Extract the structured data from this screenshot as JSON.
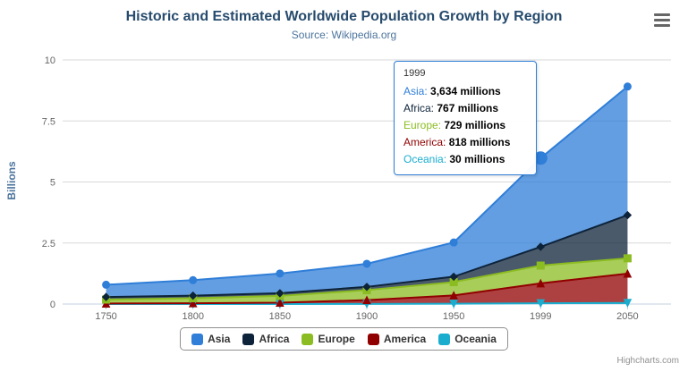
{
  "chart": {
    "title": "Historic and Estimated Worldwide Population Growth by Region",
    "subtitle": "Source: Wikipedia.org",
    "credits": "Highcharts.com"
  },
  "chart_data": {
    "type": "area",
    "stacking": "normal",
    "title": "Historic and Estimated Worldwide Population Growth by Region",
    "subtitle": "Source: Wikipedia.org",
    "categories": [
      "1750",
      "1800",
      "1850",
      "1900",
      "1950",
      "1999",
      "2050"
    ],
    "xlabel": "",
    "ylabel": "Billions",
    "ylim": [
      0,
      10
    ],
    "yticks": [
      0,
      2.5,
      5,
      7.5,
      10
    ],
    "unit_millions_per_billion": 1000,
    "legend_position": "bottom",
    "grid": true,
    "series": [
      {
        "name": "Asia",
        "color": "#2f7ed8",
        "marker": "circle",
        "values": [
          502,
          635,
          809,
          947,
          1402,
          3634,
          5268
        ]
      },
      {
        "name": "Africa",
        "color": "#0d233a",
        "marker": "diamond",
        "values": [
          106,
          107,
          111,
          133,
          221,
          767,
          1766
        ]
      },
      {
        "name": "Europe",
        "color": "#8bbc21",
        "marker": "square",
        "values": [
          163,
          203,
          276,
          408,
          547,
          729,
          628
        ]
      },
      {
        "name": "America",
        "color": "#910000",
        "marker": "triangle",
        "values": [
          18,
          31,
          54,
          156,
          339,
          818,
          1201
        ]
      },
      {
        "name": "Oceania",
        "color": "#1aadce",
        "marker": "triangle-down",
        "values": [
          2,
          2,
          2,
          6,
          13,
          30,
          46
        ]
      }
    ],
    "hover": {
      "series": "Asia",
      "category": "1999",
      "category_index": 5
    },
    "tooltip": {
      "header": "1999",
      "rows": [
        {
          "name": "Asia",
          "label": "Asia:",
          "value": "3,634 millions",
          "color": "#2f7ed8"
        },
        {
          "name": "Africa",
          "label": "Africa:",
          "value": "767 millions",
          "color": "#0d233a"
        },
        {
          "name": "Europe",
          "label": "Europe:",
          "value": "729 millions",
          "color": "#8bbc21"
        },
        {
          "name": "America",
          "label": "America:",
          "value": "818 millions",
          "color": "#910000"
        },
        {
          "name": "Oceania",
          "label": "Oceania:",
          "value": "30 millions",
          "color": "#1aadce"
        }
      ]
    },
    "colors": {
      "title": "#274b6d",
      "subtitle": "#4d759e",
      "axis_labels": "#666666",
      "gridline": "#d8d8d8",
      "axis_line": "#c0d0e0",
      "legend_border": "#909090"
    }
  }
}
